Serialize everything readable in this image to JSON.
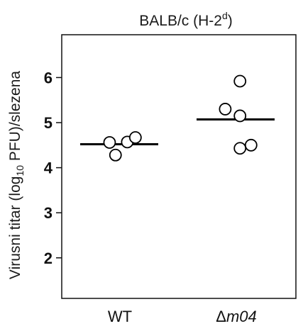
{
  "chart_data": {
    "type": "scatter",
    "title": {
      "main": "BALB/c (H-2",
      "superscript": "d",
      "close": ")"
    },
    "ylabel": {
      "pre": "Virusni titar (log",
      "subscript": "10",
      "post": " PFU)/slezena"
    },
    "xtick_labels": [
      {
        "prefix": "",
        "text": "WT"
      },
      {
        "prefix": "Δ",
        "text": "m04"
      }
    ],
    "categories": [
      "WT",
      "Δm04"
    ],
    "ylim": [
      1.1,
      6.95
    ],
    "yticks": [
      2,
      3,
      4,
      5,
      6
    ],
    "grid": false,
    "series": [
      {
        "category": "WT",
        "points": [
          {
            "offset": -0.28,
            "y": 4.56
          },
          {
            "offset": -0.12,
            "y": 4.28
          },
          {
            "offset": 0.2,
            "y": 4.57
          },
          {
            "offset": 0.42,
            "y": 4.67
          }
        ],
        "mean": 4.52
      },
      {
        "category": "Δm04",
        "points": [
          {
            "offset": 0.1,
            "y": 5.92
          },
          {
            "offset": -0.3,
            "y": 5.3
          },
          {
            "offset": 0.1,
            "y": 5.15
          },
          {
            "offset": 0.1,
            "y": 4.43
          },
          {
            "offset": 0.4,
            "y": 4.5
          }
        ],
        "mean": 5.07
      }
    ]
  }
}
